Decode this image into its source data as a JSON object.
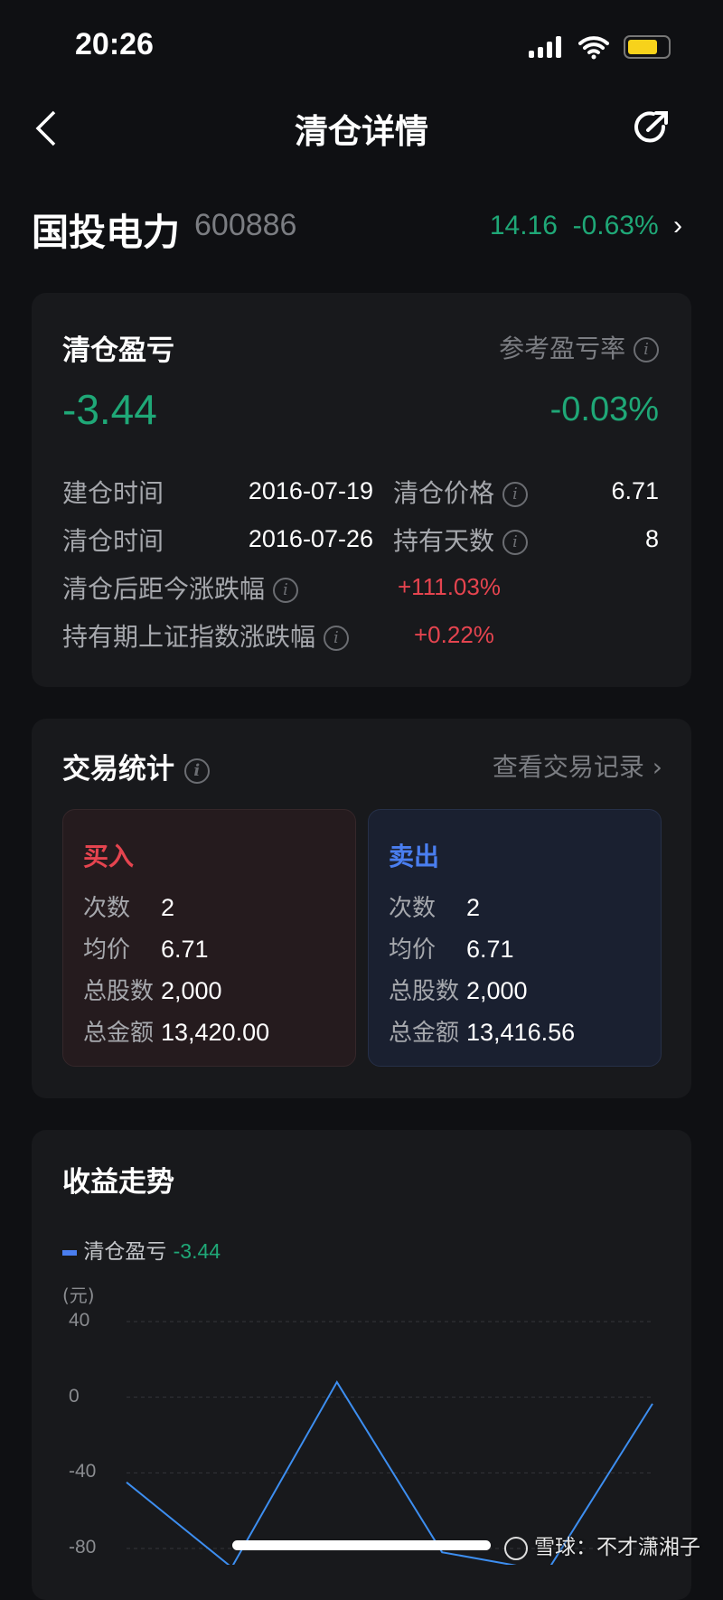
{
  "status_bar": {
    "time": "20:26"
  },
  "nav": {
    "title": "清仓详情",
    "back_icon": "chevron-left-icon",
    "share_icon": "share-icon"
  },
  "stock": {
    "name": "国投电力",
    "code": "600886",
    "price": "14.16",
    "change": "-0.63%"
  },
  "pnl_card": {
    "title": "清仓盈亏",
    "rate_label": "参考盈亏率",
    "pnl": "-3.44",
    "rate": "-0.03%",
    "open_time_label": "建仓时间",
    "open_time": "2016-07-19",
    "close_price_label": "清仓价格",
    "close_price": "6.71",
    "close_time_label": "清仓时间",
    "close_time": "2016-07-26",
    "hold_days_label": "持有天数",
    "hold_days": "8",
    "since_close_label": "清仓后距今涨跌幅",
    "since_close": "+111.03%",
    "index_label": "持有期上证指数涨跌幅",
    "index_change": "+0.22%"
  },
  "trade_card": {
    "title": "交易统计",
    "link": "查看交易记录",
    "buy": {
      "title": "买入",
      "rows": [
        {
          "label": "次数",
          "value": "2"
        },
        {
          "label": "均价",
          "value": "6.71"
        },
        {
          "label": "总股数",
          "value": "2,000"
        },
        {
          "label": "总金额",
          "value": "13,420.00"
        }
      ]
    },
    "sell": {
      "title": "卖出",
      "rows": [
        {
          "label": "次数",
          "value": "2"
        },
        {
          "label": "均价",
          "value": "6.71"
        },
        {
          "label": "总股数",
          "value": "2,000"
        },
        {
          "label": "总金额",
          "value": "13,416.56"
        }
      ]
    }
  },
  "colors": {
    "up": "#e5444f",
    "down": "#1fa877",
    "line": "#3d8ef0",
    "sell": "#4a7ef0"
  },
  "chart_data": {
    "type": "line",
    "title": "收益走势",
    "legend": "清仓盈亏",
    "legend_value": "-3.44",
    "ylabel": "(元)",
    "yticks": [
      "40",
      "0",
      "-40",
      "-80"
    ],
    "ylim": [
      -80,
      40
    ],
    "grid": true,
    "legend_position": "top-left",
    "series": [
      {
        "name": "清仓盈亏",
        "values": [
          -45,
          -90,
          8,
          -82,
          -92,
          -3.44
        ]
      }
    ]
  },
  "watermark": "雪球：不才潇湘子"
}
